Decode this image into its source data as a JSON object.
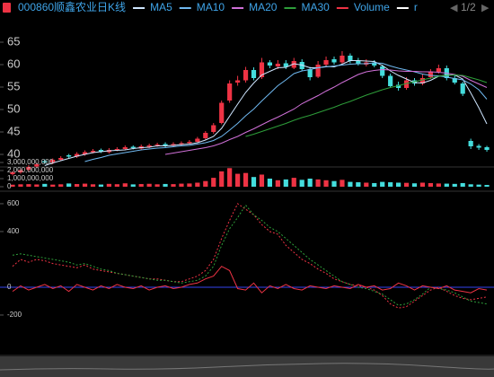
{
  "pager": "1/2",
  "chart_data": [
    {
      "type": "candlestick",
      "ylim": [
        37.4,
        70.8
      ],
      "yticks": [
        40,
        45,
        50,
        55,
        60,
        65
      ],
      "up_color": "#ee3344",
      "down_color": "#44dddd",
      "candles": {
        "name": "000860顺鑫农业日K线",
        "color": "#ee3344",
        "open": [
          35.6,
          36.0,
          36.6,
          37.3,
          38.5,
          38.2,
          38.8,
          39.8,
          39.5,
          40.0,
          40.5,
          41.0,
          40.5,
          41.0,
          41.2,
          41.7,
          41.3,
          41.7,
          42.0,
          42.3,
          41.9,
          42.3,
          42.5,
          42.8,
          43.6,
          45.0,
          47.0,
          52.0,
          56.0,
          56.5,
          58.8,
          57.2,
          60.5,
          59.6,
          60.3,
          59.3,
          60.6,
          59.0,
          57.3,
          60.0,
          61.2,
          60.5,
          62.0,
          60.8,
          60.0,
          60.5,
          59.6,
          57.5,
          55.5,
          54.8,
          56.5,
          55.8,
          57.2,
          58.4,
          59.2,
          57.0,
          55.8,
          43.0,
          41.9,
          41.6
        ],
        "high": [
          36.3,
          36.9,
          37.6,
          38.1,
          38.9,
          39.1,
          39.6,
          40.1,
          40.5,
          40.9,
          41.2,
          41.3,
          41.4,
          41.6,
          42.0,
          42.0,
          42.2,
          42.4,
          42.6,
          42.7,
          42.7,
          42.9,
          43.2,
          43.9,
          45.2,
          47.0,
          52.0,
          56.5,
          57.5,
          59.5,
          59.4,
          61.5,
          61.0,
          61.0,
          61.0,
          61.5,
          61.2,
          59.5,
          60.8,
          61.8,
          61.8,
          63.0,
          62.5,
          61.5,
          61.2,
          61.0,
          60.0,
          58.0,
          56.2,
          57.2,
          57.0,
          57.8,
          59.0,
          60.0,
          59.8,
          57.6,
          56.2,
          43.5,
          42.3,
          41.9
        ],
        "low": [
          35.3,
          35.7,
          36.3,
          37.0,
          37.9,
          37.8,
          38.5,
          39.2,
          39.2,
          39.7,
          40.2,
          40.3,
          40.2,
          40.7,
          40.9,
          41.1,
          41.0,
          41.4,
          41.7,
          41.6,
          41.6,
          42.0,
          42.2,
          42.5,
          43.3,
          44.6,
          46.7,
          51.5,
          55.3,
          56.0,
          56.5,
          56.8,
          59.2,
          59.0,
          59.0,
          59.0,
          58.6,
          56.5,
          57.0,
          59.6,
          60.0,
          60.2,
          60.3,
          59.8,
          59.6,
          59.4,
          57.0,
          54.8,
          54.2,
          54.4,
          55.3,
          55.4,
          56.8,
          58.0,
          56.5,
          55.6,
          53.0,
          41.2,
          41.0,
          40.6
        ],
        "close": [
          36.0,
          36.5,
          37.2,
          37.8,
          38.2,
          38.8,
          39.2,
          39.5,
          40.1,
          40.5,
          40.8,
          40.6,
          41.0,
          41.2,
          41.6,
          41.4,
          41.8,
          42.0,
          42.2,
          41.9,
          42.3,
          42.5,
          42.8,
          43.5,
          44.8,
          46.5,
          51.5,
          55.8,
          56.5,
          58.8,
          57.0,
          60.5,
          59.8,
          60.2,
          59.5,
          60.8,
          59.0,
          57.2,
          60.0,
          61.0,
          60.5,
          62.0,
          60.8,
          60.2,
          60.5,
          59.8,
          57.5,
          55.2,
          54.8,
          56.5,
          55.8,
          57.0,
          58.5,
          59.2,
          57.0,
          56.0,
          53.5,
          41.8,
          41.5,
          41.0
        ]
      },
      "series": [
        {
          "name": "MA5",
          "color": "#cfe6ff",
          "values": [
            null,
            null,
            null,
            null,
            37.5,
            38.1,
            38.6,
            39.1,
            39.6,
            40.0,
            40.4,
            40.6,
            40.8,
            40.9,
            41.0,
            41.3,
            41.5,
            41.6,
            41.9,
            41.9,
            42.0,
            42.2,
            42.3,
            42.6,
            43.2,
            44.0,
            45.8,
            48.5,
            51.2,
            53.8,
            55.9,
            57.7,
            58.5,
            59.3,
            59.4,
            60.2,
            59.9,
            59.3,
            59.3,
            59.6,
            59.5,
            60.1,
            60.9,
            60.9,
            60.8,
            60.7,
            59.8,
            58.6,
            57.6,
            56.8,
            56.0,
            55.9,
            56.5,
            57.4,
            57.7,
            57.7,
            56.8,
            53.7,
            50.4,
            46.8
          ]
        },
        {
          "name": "MA10",
          "color": "#6fb8f0",
          "values": [
            null,
            null,
            null,
            null,
            null,
            null,
            null,
            null,
            null,
            38.4,
            38.9,
            39.3,
            39.8,
            40.1,
            40.4,
            40.7,
            41.0,
            41.2,
            41.4,
            41.5,
            41.7,
            41.9,
            42.0,
            42.3,
            42.6,
            43.1,
            44.0,
            45.4,
            46.9,
            48.6,
            50.1,
            51.9,
            53.6,
            55.3,
            56.6,
            58.0,
            58.6,
            58.9,
            59.3,
            59.5,
            59.7,
            59.9,
            60.1,
            60.2,
            60.2,
            60.4,
            60.3,
            59.7,
            59.2,
            58.8,
            58.4,
            57.9,
            57.6,
            57.5,
            57.2,
            56.9,
            56.6,
            55.7,
            54.4,
            52.3
          ]
        },
        {
          "name": "MA20",
          "color": "#d070d8",
          "values": [
            null,
            null,
            null,
            null,
            null,
            null,
            null,
            null,
            null,
            null,
            null,
            null,
            null,
            null,
            null,
            null,
            null,
            null,
            null,
            40.0,
            40.3,
            40.6,
            40.9,
            41.2,
            41.5,
            41.9,
            42.5,
            43.3,
            44.0,
            44.9,
            45.7,
            46.6,
            47.5,
            48.3,
            49.2,
            50.1,
            51.3,
            52.2,
            53.1,
            54.1,
            55.0,
            56.0,
            56.9,
            57.8,
            58.4,
            58.7,
            58.9,
            58.8,
            58.6,
            58.5,
            58.5,
            58.4,
            58.4,
            58.3,
            58.1,
            57.8,
            57.4,
            56.5,
            55.7,
            54.9
          ]
        },
        {
          "name": "MA30",
          "color": "#2e9e3a",
          "values": [
            null,
            null,
            null,
            null,
            null,
            null,
            null,
            null,
            null,
            null,
            null,
            null,
            null,
            null,
            null,
            null,
            null,
            null,
            null,
            null,
            null,
            null,
            null,
            null,
            null,
            null,
            null,
            null,
            null,
            44.0,
            44.5,
            45.1,
            45.7,
            46.3,
            46.9,
            47.6,
            48.2,
            48.7,
            49.3,
            49.9,
            50.5,
            51.2,
            51.8,
            52.5,
            53.2,
            53.8,
            54.4,
            54.9,
            55.3,
            55.8,
            56.2,
            56.6,
            57.0,
            57.4,
            57.6,
            57.7,
            57.6,
            57.1,
            56.6,
            56.0
          ]
        }
      ]
    },
    {
      "type": "bar",
      "ylim": [
        0,
        3000000000
      ],
      "yticks": [
        0,
        {
          "value": 1000000000,
          "label": "1,000,000,000"
        },
        {
          "value": 2000000000,
          "label": "2,000,000,000"
        },
        {
          "value": 3000000000,
          "label": "3,000,000,000"
        }
      ],
      "series": [
        {
          "name": "Volume",
          "color": "#ee3344",
          "values": [
            250000000.0,
            300000000.0,
            320000000.0,
            280000000.0,
            350000000.0,
            260000000.0,
            300000000.0,
            400000000.0,
            330000000.0,
            380000000.0,
            300000000.0,
            270000000.0,
            350000000.0,
            310000000.0,
            420000000.0,
            290000000.0,
            330000000.0,
            360000000.0,
            300000000.0,
            340000000.0,
            320000000.0,
            380000000.0,
            400000000.0,
            500000000.0,
            700000000.0,
            1100000000.0,
            1900000000.0,
            2300000000.0,
            1600000000.0,
            1700000000.0,
            1200000000.0,
            1500000000.0,
            1000000000.0,
            800000000.0,
            900000000.0,
            1100000000.0,
            850000000.0,
            1000000000.0,
            900000000.0,
            800000000.0,
            700000000.0,
            850000000.0,
            600000000.0,
            550000000.0,
            500000000.0,
            450000000.0,
            600000000.0,
            550000000.0,
            500000000.0,
            480000000.0,
            420000000.0,
            500000000.0,
            450000000.0,
            400000000.0,
            380000000.0,
            350000000.0,
            450000000.0,
            300000000.0,
            260000000.0,
            220000000.0
          ]
        }
      ]
    },
    {
      "type": "line",
      "ylim": [
        -484,
        677
      ],
      "yticks": [
        -200,
        0,
        400,
        600
      ],
      "series": [
        {
          "name": "r",
          "color": "#ee3344",
          "style": "dotted",
          "values": [
            150,
            200,
            180,
            200,
            190,
            170,
            160,
            150,
            140,
            160,
            130,
            120,
            110,
            100,
            90,
            80,
            70,
            60,
            60,
            50,
            40,
            40,
            60,
            80,
            120,
            200,
            350,
            480,
            600,
            560,
            520,
            450,
            400,
            380,
            300,
            250,
            200,
            170,
            130,
            100,
            60,
            40,
            20,
            10,
            0,
            -20,
            -60,
            -120,
            -150,
            -140,
            -100,
            -60,
            -20,
            0,
            -30,
            -60,
            -80,
            -90,
            -80,
            -70
          ]
        },
        {
          "color": "#2e9e3a",
          "style": "dotted",
          "values": [
            230,
            240,
            230,
            220,
            210,
            200,
            190,
            180,
            160,
            170,
            150,
            130,
            120,
            100,
            90,
            80,
            70,
            60,
            50,
            50,
            40,
            30,
            40,
            50,
            80,
            150,
            300,
            420,
            500,
            590,
            520,
            480,
            430,
            400,
            350,
            300,
            250,
            200,
            160,
            120,
            80,
            40,
            20,
            0,
            -10,
            -30,
            -50,
            -90,
            -130,
            -120,
            -90,
            -50,
            0,
            -10,
            -20,
            -40,
            -70,
            -100,
            -110,
            -120
          ]
        },
        {
          "color": "#ee3344",
          "style": "solid",
          "values": [
            -30,
            10,
            -20,
            0,
            20,
            -10,
            10,
            -30,
            20,
            0,
            -20,
            10,
            -10,
            20,
            0,
            -10,
            10,
            -20,
            0,
            10,
            -10,
            0,
            20,
            30,
            60,
            80,
            150,
            120,
            -10,
            -20,
            30,
            -40,
            10,
            -10,
            20,
            -10,
            -20,
            10,
            0,
            -10,
            10,
            0,
            -10,
            20,
            0,
            10,
            -20,
            -10,
            30,
            10,
            -20,
            10,
            0,
            -10,
            10,
            -20,
            -30,
            -40,
            -10,
            -20
          ]
        }
      ]
    }
  ]
}
